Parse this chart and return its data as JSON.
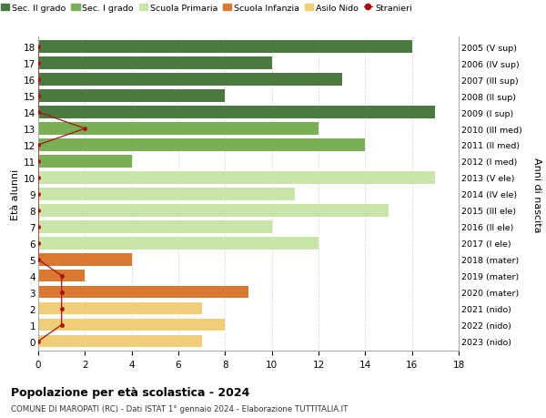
{
  "ages": [
    18,
    17,
    16,
    15,
    14,
    13,
    12,
    11,
    10,
    9,
    8,
    7,
    6,
    5,
    4,
    3,
    2,
    1,
    0
  ],
  "years": [
    "2005 (V sup)",
    "2006 (IV sup)",
    "2007 (III sup)",
    "2008 (II sup)",
    "2009 (I sup)",
    "2010 (III med)",
    "2011 (II med)",
    "2012 (I med)",
    "2013 (V ele)",
    "2014 (IV ele)",
    "2015 (III ele)",
    "2016 (II ele)",
    "2017 (I ele)",
    "2018 (mater)",
    "2019 (mater)",
    "2020 (mater)",
    "2021 (nido)",
    "2022 (nido)",
    "2023 (nido)"
  ],
  "values": [
    16,
    10,
    13,
    8,
    17,
    12,
    14,
    4,
    17,
    11,
    15,
    10,
    12,
    4,
    2,
    9,
    7,
    8,
    7
  ],
  "stranieri": [
    0,
    0,
    0,
    0,
    0,
    2,
    0,
    0,
    0,
    0,
    0,
    0,
    0,
    0,
    1,
    1,
    1,
    1,
    0
  ],
  "bar_colors": [
    "#4a7a40",
    "#4a7a40",
    "#4a7a40",
    "#4a7a40",
    "#4a7a40",
    "#7ab055",
    "#7ab055",
    "#7ab055",
    "#c8e4a8",
    "#c8e4a8",
    "#c8e4a8",
    "#c8e4a8",
    "#c8e4a8",
    "#d97830",
    "#d97830",
    "#d97830",
    "#f0cd78",
    "#f0cd78",
    "#f0cd78"
  ],
  "color_sec2": "#4a7a40",
  "color_sec1": "#7ab055",
  "color_prim": "#c8e4a8",
  "color_inf": "#d97830",
  "color_nido": "#f0cd78",
  "color_stranieri": "#aa1111",
  "title_bold": "Popolazione per età scolastica - 2024",
  "subtitle": "COMUNE DI MAROPATI (RC) - Dati ISTAT 1° gennaio 2024 - Elaborazione TUTTITALIA.IT",
  "ylabel_left": "Età alunni",
  "ylabel_right": "Anni di nascita",
  "xlim": [
    0,
    18
  ],
  "legend_labels": [
    "Sec. II grado",
    "Sec. I grado",
    "Scuola Primaria",
    "Scuola Infanzia",
    "Asilo Nido",
    "Stranieri"
  ],
  "background_color": "#ffffff",
  "grid_color": "#dddddd",
  "bar_height": 0.75
}
